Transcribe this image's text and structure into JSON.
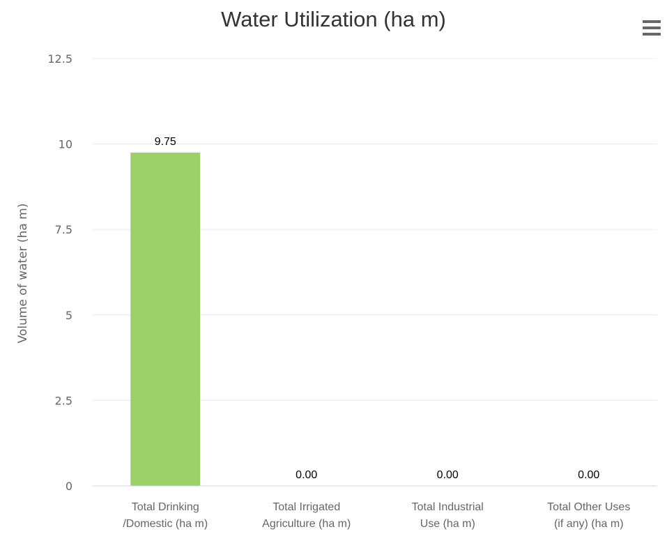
{
  "chart_data": {
    "type": "bar",
    "title": "Water Utilization (ha m)",
    "ylabel": "Volume of water (ha m)",
    "xlabel": "",
    "ylim": [
      0,
      12.5
    ],
    "yticks": [
      "0",
      "2.5",
      "5",
      "7.5",
      "10",
      "12.5"
    ],
    "grid": true,
    "legend": "none",
    "bar_color": "#9dd069",
    "categories": [
      [
        "Total Drinking",
        "/Domestic (ha m)"
      ],
      [
        "Total Irrigated",
        "Agriculture (ha m)"
      ],
      [
        "Total Industrial",
        "Use (ha m)"
      ],
      [
        "Total Other Uses",
        "(if any) (ha m)"
      ]
    ],
    "values": [
      9.75,
      0,
      0,
      0
    ],
    "data_labels": [
      "9.75",
      "0.00",
      "0.00",
      "0.00"
    ]
  },
  "menu": {
    "icon": "hamburger-menu-icon"
  }
}
